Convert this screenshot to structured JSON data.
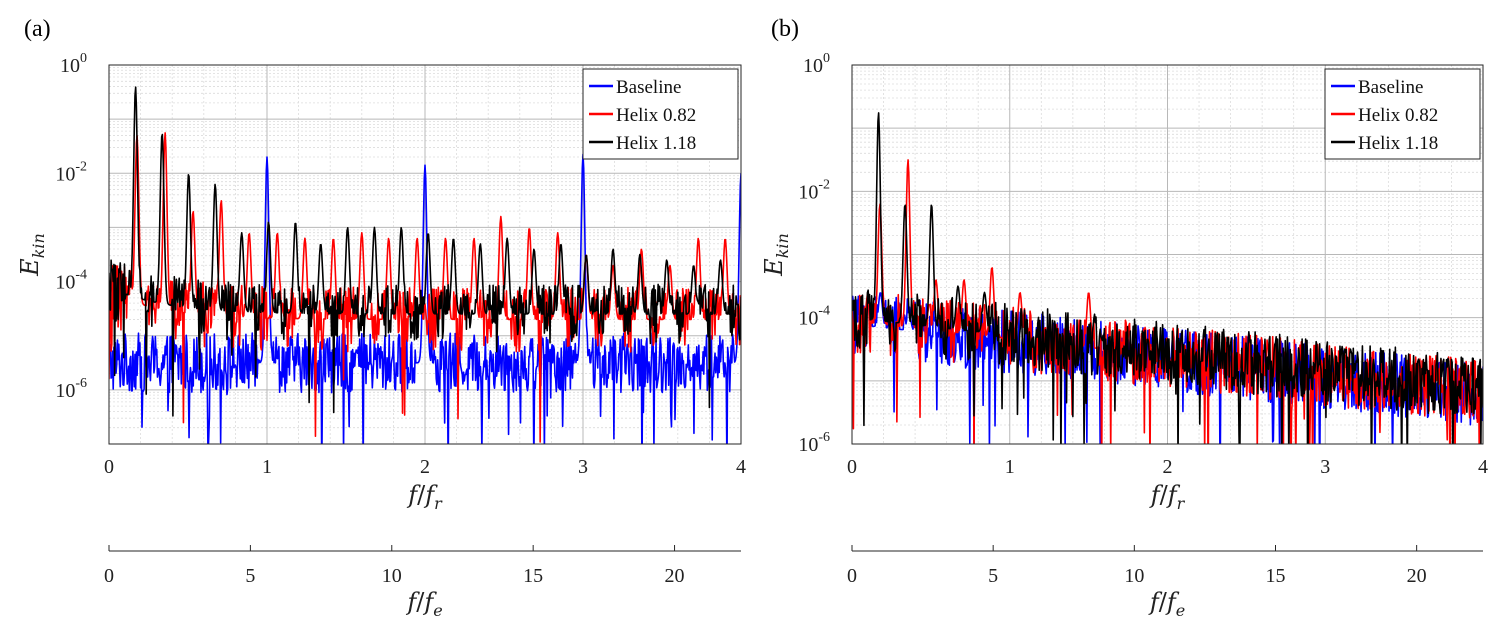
{
  "chart_data": [
    {
      "panel_label": "(a)",
      "type": "line",
      "x_scale": "linear",
      "y_scale": "log",
      "xlim": [
        0,
        4
      ],
      "ylim_exp": [
        -7,
        0
      ],
      "xticks": [
        "0",
        "1",
        "2",
        "3",
        "4"
      ],
      "ytick_base": "10",
      "yticks_exp": [
        "-6",
        "-4",
        "-2",
        "0"
      ],
      "xlabel_num": "f",
      "xlabel_den": "f",
      "xlabel_den_sub": "r",
      "ylabel": "E",
      "ylabel_sub": "kin",
      "secondary_xaxis": {
        "xlim": [
          0,
          22.35
        ],
        "ticks": [
          "0",
          "5",
          "10",
          "15",
          "20"
        ],
        "label_num": "f",
        "label_den": "f",
        "label_den_sub": "e"
      },
      "legend": {
        "position": "top-right",
        "entries": [
          "Baseline",
          "Helix 0.82",
          "Helix 1.18"
        ]
      },
      "series": [
        {
          "name": "Baseline",
          "color": "#0000ff",
          "floor_exp": -5.5,
          "spread": 0.55,
          "peaks": [
            [
              1,
              -1.7
            ],
            [
              2,
              -1.85
            ],
            [
              3,
              -1.65
            ],
            [
              4,
              -2.0
            ]
          ]
        },
        {
          "name": "Helix 0.82",
          "color": "#ff0000",
          "floor_exp": -4.7,
          "spread": 0.6,
          "peaks": [
            [
              0.177,
              -1.3
            ],
            [
              0.355,
              -1.25
            ],
            [
              0.532,
              -2.7
            ],
            [
              0.71,
              -2.5
            ],
            [
              0.887,
              -3.1
            ],
            [
              1.065,
              -3.1
            ],
            [
              1.24,
              -3.2
            ],
            [
              1.42,
              -3.2
            ],
            [
              1.6,
              -3.1
            ],
            [
              1.77,
              -3.2
            ],
            [
              1.95,
              -3.2
            ],
            [
              2.13,
              -3.2
            ],
            [
              2.31,
              -3.2
            ],
            [
              2.48,
              -2.8
            ],
            [
              2.66,
              -3.0
            ],
            [
              2.84,
              -3.1
            ],
            [
              3.02,
              -3.5
            ],
            [
              3.19,
              -3.7
            ],
            [
              3.37,
              -3.4
            ],
            [
              3.55,
              -3.7
            ],
            [
              3.73,
              -3.2
            ],
            [
              3.9,
              -3.2
            ]
          ]
        },
        {
          "name": "Helix 1.18",
          "color": "#000000",
          "floor_exp": -4.6,
          "spread": 0.55,
          "peaks": [
            [
              0.168,
              -0.4
            ],
            [
              0.336,
              -1.25
            ],
            [
              0.504,
              -2.0
            ],
            [
              0.672,
              -2.2
            ],
            [
              0.84,
              -3.1
            ],
            [
              1.01,
              -2.9
            ],
            [
              1.18,
              -2.9
            ],
            [
              1.34,
              -3.3
            ],
            [
              1.51,
              -3.0
            ],
            [
              1.68,
              -3.0
            ],
            [
              1.85,
              -3.0
            ],
            [
              2.02,
              -3.1
            ],
            [
              2.18,
              -3.2
            ],
            [
              2.35,
              -3.3
            ],
            [
              2.52,
              -3.2
            ],
            [
              2.69,
              -3.4
            ],
            [
              2.86,
              -3.3
            ],
            [
              3.02,
              -3.5
            ],
            [
              3.19,
              -3.4
            ],
            [
              3.36,
              -3.5
            ],
            [
              3.53,
              -3.6
            ],
            [
              3.7,
              -3.7
            ],
            [
              3.87,
              -3.6
            ]
          ]
        }
      ]
    },
    {
      "panel_label": "(b)",
      "type": "line",
      "x_scale": "linear",
      "y_scale": "log",
      "xlim": [
        0,
        4
      ],
      "ylim_exp": [
        -6,
        0
      ],
      "xticks": [
        "0",
        "1",
        "2",
        "3",
        "4"
      ],
      "ytick_base": "10",
      "yticks_exp": [
        "-6",
        "-4",
        "-2",
        "0"
      ],
      "xlabel_num": "f",
      "xlabel_den": "f",
      "xlabel_den_sub": "r",
      "ylabel": "E",
      "ylabel_sub": "kin",
      "secondary_xaxis": {
        "xlim": [
          0,
          22.35
        ],
        "ticks": [
          "0",
          "5",
          "10",
          "15",
          "20"
        ],
        "label_num": "f",
        "label_den": "f",
        "label_den_sub": "e"
      },
      "legend": {
        "position": "top-right",
        "entries": [
          "Baseline",
          "Helix 0.82",
          "Helix 1.18"
        ]
      },
      "series": [
        {
          "name": "Baseline",
          "color": "#0000ff",
          "floor_exp": -4.1,
          "slope": 0.28,
          "spread": 0.5,
          "peaks": [
            [
              0.18,
              -3.6
            ],
            [
              0.36,
              -3.9
            ]
          ]
        },
        {
          "name": "Helix 0.82",
          "color": "#ff0000",
          "floor_exp": -4.05,
          "slope": 0.28,
          "spread": 0.5,
          "peaks": [
            [
              0.177,
              -2.2
            ],
            [
              0.355,
              -1.5
            ],
            [
              0.532,
              -3.4
            ],
            [
              0.71,
              -3.4
            ],
            [
              0.887,
              -3.2
            ],
            [
              1.065,
              -3.6
            ],
            [
              1.5,
              -3.6
            ]
          ]
        },
        {
          "name": "Helix 1.18",
          "color": "#000000",
          "floor_exp": -4.0,
          "slope": 0.28,
          "spread": 0.5,
          "peaks": [
            [
              0.168,
              -0.75
            ],
            [
              0.336,
              -2.2
            ],
            [
              0.504,
              -2.2
            ],
            [
              0.672,
              -3.5
            ],
            [
              0.84,
              -3.6
            ]
          ]
        }
      ]
    }
  ]
}
